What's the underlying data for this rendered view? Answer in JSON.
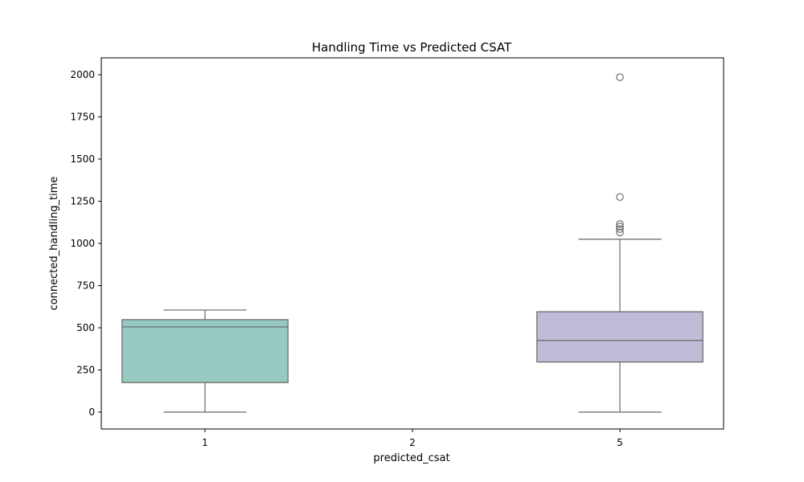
{
  "chart_data": {
    "type": "box",
    "title": "Handling Time vs Predicted CSAT",
    "xlabel": "predicted_csat",
    "ylabel": "connected_handling_time",
    "categories": [
      "1",
      "2",
      "5"
    ],
    "ylim": [
      -100,
      2100
    ],
    "yticks": [
      0,
      250,
      500,
      750,
      1000,
      1250,
      1500,
      1750,
      2000
    ],
    "grid": false,
    "legend": "none",
    "boxes": [
      {
        "category": "1",
        "color": "#96c9c0",
        "whisker_low": 0,
        "q1": 175,
        "median": 505,
        "q3": 548,
        "whisker_high": 605,
        "outliers": []
      },
      {
        "category": "2",
        "color": "#ffffff",
        "empty": true
      },
      {
        "category": "5",
        "color": "#bfbcd7",
        "whisker_low": 0,
        "q1": 297,
        "median": 425,
        "q3": 595,
        "whisker_high": 1025,
        "outliers": [
          1065,
          1085,
          1100,
          1115,
          1275,
          1985
        ]
      }
    ]
  }
}
